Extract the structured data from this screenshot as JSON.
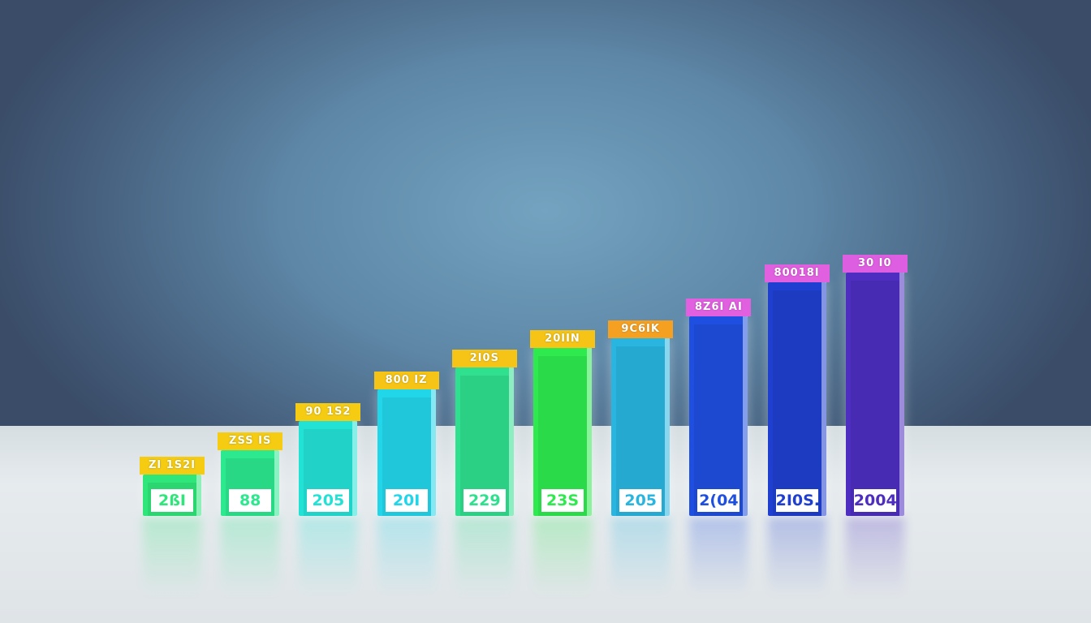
{
  "chart_data": {
    "type": "bar",
    "title": "",
    "xlabel": "",
    "ylabel": "",
    "value_scale": "relative height, tallest bar = 100 (no axis printed)",
    "values": [
      17,
      27,
      39,
      52,
      61,
      69,
      73,
      82,
      96,
      100
    ],
    "top_labels": [
      "ZI 1S2I",
      "ZSS IS",
      "90 1S2",
      "800 IZ",
      "2I0S",
      "20IIN",
      "9C6IK",
      "8Z6I AI",
      "80018I",
      "30 I0"
    ],
    "bottom_labels": [
      "2ßI",
      "88",
      "205",
      "20I",
      "229",
      "23S",
      "205",
      "2(04",
      "2I0S.",
      "2004"
    ],
    "bar_colors": [
      "#2ee67a",
      "#2ce88e",
      "#22e2d6",
      "#22d6ea",
      "#2fe08e",
      "#2eea4e",
      "#28b6e0",
      "#1f4fe0",
      "#1f3fd0",
      "#4d2ec0"
    ],
    "tag_colors": [
      "#f5cc12",
      "#f5cc12",
      "#f5cc12",
      "#f5c416",
      "#f5c416",
      "#f5c416",
      "#f5a020",
      "#e060e0",
      "#e060e0",
      "#dd5ee0"
    ],
    "grid": false,
    "legend": "none",
    "style": "3d"
  }
}
